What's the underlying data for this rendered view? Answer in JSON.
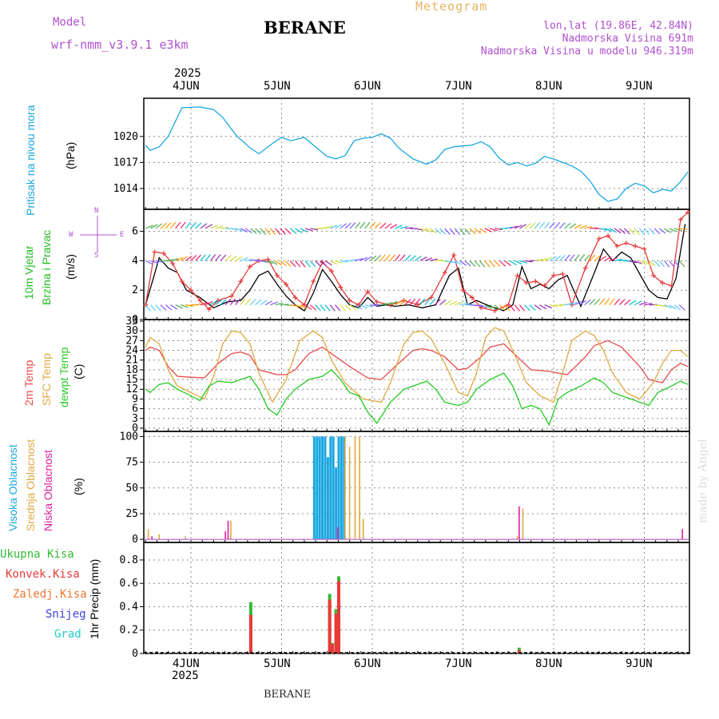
{
  "header": {
    "title": "BERANE",
    "meteogram": "Meteogram",
    "model_label": "Model",
    "model_name": "wrf-nmm_v3.9.1 e3km",
    "lonlat": "lon,lat (19.86E, 42.84N)",
    "elevation": "Nadmorska Visina 691m",
    "model_elevation": "Nadmorska Visina u modelu 946.319m",
    "year": "2025",
    "footer": "BERANE",
    "watermark": "made by Angel"
  },
  "dates": [
    "4JUN",
    "5JUN",
    "6JUN",
    "7JUN",
    "8JUN",
    "9JUN"
  ],
  "colors": {
    "pressure": "#1aa7e0",
    "wind_speed": "#000000",
    "wind_gust": "#e83a3a",
    "temp2m": "#e84a4a",
    "sfc": "#e0a840",
    "dewpt": "#22cc22",
    "high_cloud": "#1aa7e0",
    "mid_cloud": "#e0a840",
    "low_cloud": "#e020a0",
    "total_precip": "#33bb33",
    "conv_precip": "#e83a3a",
    "freezing": "#ee7733",
    "snow": "#4040dd",
    "hail": "#22cccc"
  },
  "labels": {
    "pressure": [
      "Pritisak na nivou mora",
      "(hPa)"
    ],
    "wind": [
      "10m Vjetar",
      "Brzina i Pravac",
      "(m/s)"
    ],
    "compass": [
      "N",
      "S",
      "W",
      "E"
    ],
    "temp": [
      "2m Temp",
      "SFC Temp",
      "dewpt Temp",
      "(C)"
    ],
    "cloud": [
      "Visoka Oblacnost",
      "Srednja Oblacnost",
      "Niska Oblacnost",
      "(%)"
    ],
    "precip": [
      "Ukupna Kisa",
      "Konvek.Kisa",
      "Zaledj.Kisa",
      "Snijeg",
      "Grad",
      "1hr Precip (mm)"
    ]
  },
  "chart_data": [
    {
      "type": "line",
      "title": "Pritisak na nivou mora",
      "ylabel": "(hPa)",
      "x_range_days": [
        -0.55,
        5.5
      ],
      "ylim": [
        1011.6,
        1024.4
      ],
      "yticks": [
        1014,
        1017,
        1020
      ],
      "series": [
        {
          "name": "pressure",
          "x": [
            -0.5,
            -0.45,
            -0.35,
            -0.25,
            -0.1,
            0.1,
            0.25,
            0.35,
            0.5,
            0.65,
            0.75,
            0.9,
            1.0,
            1.1,
            1.25,
            1.35,
            1.5,
            1.6,
            1.7,
            1.8,
            1.9,
            2.0,
            2.1,
            2.2,
            2.3,
            2.45,
            2.6,
            2.7,
            2.8,
            2.9,
            3.0,
            3.1,
            3.2,
            3.3,
            3.4,
            3.5,
            3.6,
            3.7,
            3.8,
            3.9,
            4.0,
            4.1,
            4.2,
            4.3,
            4.4,
            4.5,
            4.6,
            4.7,
            4.8,
            4.9,
            5.0,
            5.1,
            5.2,
            5.3,
            5.4,
            5.48
          ],
          "values": [
            1019.0,
            1018.4,
            1018.8,
            1020.0,
            1023.3,
            1023.4,
            1023.1,
            1022.2,
            1020.1,
            1018.7,
            1018.0,
            1019.2,
            1019.9,
            1019.5,
            1019.9,
            1019.0,
            1017.7,
            1017.4,
            1017.8,
            1019.5,
            1019.8,
            1019.9,
            1020.3,
            1019.8,
            1018.6,
            1017.4,
            1016.8,
            1017.3,
            1018.5,
            1018.8,
            1018.9,
            1019.0,
            1019.4,
            1018.8,
            1017.5,
            1016.7,
            1017.0,
            1016.6,
            1016.9,
            1017.7,
            1017.4,
            1017.0,
            1016.6,
            1016.0,
            1014.9,
            1013.3,
            1012.5,
            1012.8,
            1014.0,
            1014.6,
            1014.3,
            1013.5,
            1013.9,
            1013.7,
            1014.8,
            1015.9
          ]
        }
      ]
    },
    {
      "type": "line",
      "title": "10m Vjetar Brzina i Pravac",
      "ylabel": "(m/s)",
      "x_range_days": [
        -0.55,
        5.5
      ],
      "ylim": [
        0,
        7.5
      ],
      "yticks": [
        0,
        2,
        4,
        6
      ],
      "series": [
        {
          "name": "wind_speed",
          "x": [
            -0.5,
            -0.35,
            -0.25,
            -0.15,
            -0.05,
            0.1,
            0.25,
            0.4,
            0.55,
            0.65,
            0.75,
            0.85,
            0.95,
            1.05,
            1.15,
            1.25,
            1.35,
            1.45,
            1.55,
            1.65,
            1.75,
            1.85,
            1.95,
            2.05,
            2.15,
            2.25,
            2.4,
            2.55,
            2.7,
            2.85,
            2.95,
            3.05,
            3.15,
            3.3,
            3.45,
            3.55,
            3.65,
            3.75,
            3.85,
            3.95,
            4.05,
            4.15,
            4.3,
            4.45,
            4.55,
            4.65,
            4.75,
            4.85,
            4.95,
            5.05,
            5.15,
            5.25,
            5.35,
            5.45
          ],
          "values": [
            1.0,
            4.2,
            3.5,
            3.2,
            2.0,
            1.5,
            0.8,
            1.2,
            1.3,
            2.0,
            3.0,
            3.3,
            2.4,
            1.6,
            1.0,
            0.6,
            1.8,
            3.4,
            2.6,
            1.7,
            1.0,
            0.8,
            1.5,
            0.9,
            1.0,
            0.9,
            1.0,
            0.8,
            1.0,
            3.0,
            3.5,
            1.0,
            1.3,
            0.9,
            0.6,
            1.0,
            3.6,
            2.1,
            2.4,
            2.1,
            2.7,
            3.0,
            0.9,
            3.2,
            4.8,
            4.0,
            4.6,
            4.2,
            3.1,
            2.0,
            1.5,
            1.4,
            2.8,
            6.5
          ]
        },
        {
          "name": "wind_gust",
          "x": [
            -0.5,
            -0.4,
            -0.3,
            -0.2,
            -0.1,
            0.0,
            0.1,
            0.2,
            0.3,
            0.45,
            0.55,
            0.65,
            0.75,
            0.85,
            0.95,
            1.05,
            1.15,
            1.25,
            1.35,
            1.45,
            1.55,
            1.65,
            1.75,
            1.85,
            1.95,
            2.05,
            2.2,
            2.35,
            2.5,
            2.65,
            2.8,
            2.9,
            3.0,
            3.1,
            3.2,
            3.35,
            3.5,
            3.6,
            3.7,
            3.8,
            3.9,
            4.0,
            4.1,
            4.2,
            4.35,
            4.5,
            4.6,
            4.7,
            4.8,
            4.9,
            5.0,
            5.1,
            5.2,
            5.3,
            5.4,
            5.48
          ],
          "values": [
            1.0,
            4.6,
            4.5,
            3.8,
            2.6,
            2.0,
            1.3,
            0.7,
            1.3,
            1.6,
            2.6,
            3.6,
            4.0,
            4.1,
            3.0,
            2.4,
            1.5,
            1.0,
            2.6,
            3.9,
            3.3,
            2.2,
            1.3,
            1.0,
            1.9,
            1.2,
            1.0,
            1.3,
            1.0,
            1.5,
            3.2,
            4.4,
            2.0,
            1.5,
            0.8,
            0.6,
            1.0,
            3.0,
            2.5,
            2.6,
            2.3,
            3.0,
            3.1,
            1.0,
            3.5,
            5.5,
            5.7,
            5.0,
            5.2,
            5.0,
            4.8,
            3.0,
            2.5,
            2.3,
            6.8,
            7.3
          ]
        }
      ]
    },
    {
      "type": "line",
      "title": "2m Temp / SFC Temp / dewpt Temp",
      "ylabel": "(C)",
      "x_range_days": [
        -0.55,
        5.5
      ],
      "ylim": [
        -1,
        33.5
      ],
      "yticks": [
        0,
        3,
        6,
        9,
        12,
        15,
        18,
        21,
        24,
        27,
        30,
        33
      ],
      "series": [
        {
          "name": "temp2m",
          "x": [
            -0.5,
            -0.45,
            -0.35,
            -0.25,
            -0.15,
            0.0,
            0.15,
            0.3,
            0.45,
            0.55,
            0.65,
            0.75,
            0.95,
            1.05,
            1.15,
            1.3,
            1.45,
            1.6,
            1.75,
            1.95,
            2.1,
            2.25,
            2.45,
            2.55,
            2.65,
            2.8,
            2.95,
            3.05,
            3.2,
            3.3,
            3.45,
            3.6,
            3.75,
            3.95,
            4.05,
            4.15,
            4.35,
            4.45,
            4.6,
            4.75,
            4.95,
            5.05,
            5.2,
            5.3,
            5.4,
            5.48
          ],
          "values": [
            24.0,
            25.0,
            24.0,
            19.0,
            16.0,
            15.7,
            15.5,
            20.0,
            23.0,
            23.5,
            22.5,
            18.0,
            16.5,
            16.5,
            18.0,
            23.0,
            25.0,
            22.0,
            19.0,
            15.5,
            15.0,
            19.0,
            24.0,
            24.5,
            24.0,
            22.0,
            18.0,
            18.5,
            22.0,
            25.0,
            26.0,
            22.0,
            18.0,
            17.5,
            17.0,
            16.5,
            22.0,
            25.5,
            27.0,
            25.0,
            19.0,
            15.0,
            14.0,
            18.0,
            20.0,
            19.0
          ]
        },
        {
          "name": "sfc",
          "x": [
            -0.5,
            -0.45,
            -0.35,
            -0.25,
            -0.15,
            0.0,
            0.15,
            0.25,
            0.35,
            0.45,
            0.55,
            0.65,
            0.75,
            0.9,
            1.05,
            1.2,
            1.35,
            1.45,
            1.55,
            1.7,
            1.9,
            2.1,
            2.2,
            2.35,
            2.45,
            2.55,
            2.65,
            2.8,
            2.95,
            3.05,
            3.15,
            3.25,
            3.35,
            3.45,
            3.55,
            3.7,
            3.85,
            4.0,
            4.1,
            4.2,
            4.35,
            4.45,
            4.55,
            4.65,
            4.8,
            4.95,
            5.1,
            5.2,
            5.3,
            5.4,
            5.48
          ],
          "values": [
            25.0,
            28.0,
            26.0,
            18.0,
            13.0,
            11.0,
            9.0,
            16.0,
            26.0,
            30.0,
            29.5,
            26.0,
            17.0,
            8.0,
            15.0,
            27.0,
            30.0,
            28.0,
            21.0,
            14.0,
            9.0,
            8.0,
            14.0,
            26.0,
            29.5,
            30.0,
            27.5,
            20.0,
            11.0,
            10.0,
            17.0,
            28.0,
            31.0,
            30.0,
            24.0,
            14.0,
            10.0,
            8.0,
            17.0,
            27.0,
            30.0,
            28.5,
            24.0,
            17.0,
            11.0,
            9.0,
            14.0,
            20.0,
            24.0,
            24.0,
            22.0
          ]
        },
        {
          "name": "dewpt",
          "x": [
            -0.5,
            -0.45,
            -0.35,
            -0.25,
            -0.15,
            0.0,
            0.1,
            0.2,
            0.3,
            0.45,
            0.55,
            0.65,
            0.75,
            0.85,
            0.95,
            1.05,
            1.15,
            1.3,
            1.45,
            1.55,
            1.65,
            1.75,
            1.85,
            1.95,
            2.05,
            2.2,
            2.35,
            2.5,
            2.6,
            2.7,
            2.8,
            2.95,
            3.05,
            3.15,
            3.3,
            3.45,
            3.55,
            3.65,
            3.75,
            3.85,
            3.95,
            4.05,
            4.15,
            4.3,
            4.45,
            4.55,
            4.65,
            4.75,
            4.85,
            4.95,
            5.05,
            5.15,
            5.3,
            5.4,
            5.48
          ],
          "values": [
            12.0,
            11.0,
            13.5,
            14.0,
            12.0,
            10.0,
            8.5,
            13.0,
            14.5,
            14.0,
            15.0,
            16.0,
            12.0,
            6.0,
            4.0,
            9.0,
            12.0,
            15.0,
            16.0,
            18.0,
            15.0,
            11.0,
            10.0,
            5.0,
            1.5,
            8.0,
            12.0,
            13.5,
            14.5,
            12.0,
            8.0,
            7.0,
            8.0,
            12.0,
            15.0,
            17.0,
            13.0,
            6.0,
            7.0,
            6.0,
            1.0,
            9.0,
            11.0,
            13.0,
            15.5,
            14.0,
            11.0,
            10.0,
            9.0,
            8.0,
            7.0,
            11.0,
            13.0,
            14.5,
            13.5
          ]
        }
      ]
    },
    {
      "type": "bar",
      "title": "Oblacnost",
      "ylabel": "(%)",
      "x_range_days": [
        -0.55,
        5.5
      ],
      "ylim": [
        -3,
        105
      ],
      "yticks": [
        0,
        25,
        50,
        75,
        100
      ],
      "series": [
        {
          "name": "high_cloud",
          "x": [
            1.36,
            1.39,
            1.42,
            1.45,
            1.48,
            1.51,
            1.54,
            1.57,
            1.6,
            1.63,
            1.66,
            1.69
          ],
          "values": [
            100,
            100,
            100,
            100,
            100,
            80,
            100,
            100,
            70,
            100,
            100,
            100
          ]
        },
        {
          "name": "mid_cloud",
          "x": [
            -0.47,
            -0.35,
            -0.06,
            0.44,
            1.7,
            1.75,
            1.81,
            1.86,
            1.9,
            3.6,
            3.66
          ],
          "values": [
            10,
            5,
            3,
            18,
            100,
            90,
            100,
            100,
            20,
            3,
            30
          ]
        },
        {
          "name": "low_cloud",
          "x": [
            -0.43,
            0.38,
            0.41,
            1.62,
            3.62,
            5.42
          ],
          "values": [
            3,
            8,
            18,
            12,
            32,
            10
          ]
        }
      ]
    },
    {
      "type": "bar",
      "title": "1hr Precip",
      "ylabel": "1hr Precip (mm)",
      "x_range_days": [
        -0.55,
        5.5
      ],
      "ylim": [
        0,
        0.95
      ],
      "yticks": [
        0,
        0.2,
        0.4,
        0.6,
        0.8
      ],
      "series": [
        {
          "name": "total_precip",
          "x": [
            0.66,
            1.53,
            1.56,
            1.6,
            1.63,
            3.62
          ],
          "values": [
            0.44,
            0.51,
            0.09,
            0.38,
            0.66,
            0.05
          ]
        },
        {
          "name": "conv_precip",
          "x": [
            0.66,
            1.53,
            1.56,
            1.6,
            1.63,
            3.62
          ],
          "values": [
            0.33,
            0.46,
            0.08,
            0.34,
            0.62,
            0.03
          ]
        }
      ]
    }
  ]
}
